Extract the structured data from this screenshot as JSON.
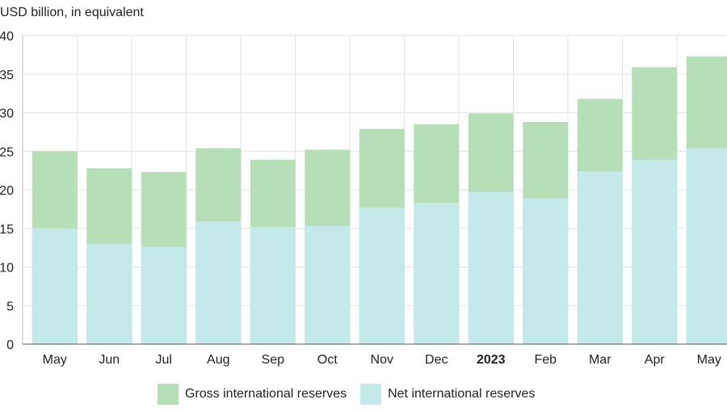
{
  "chart_data": {
    "type": "bar",
    "stacked": false,
    "overlapping": true,
    "unit_label": "USD billion, in equivalent",
    "categories": [
      "May",
      "Jun",
      "Jul",
      "Aug",
      "Sep",
      "Oct",
      "Nov",
      "Dec",
      "2023",
      "Feb",
      "Mar",
      "Apr",
      "May"
    ],
    "bold_categories": [
      "2023"
    ],
    "series": [
      {
        "name": "Gross international reserves",
        "color": "#b7dfb7",
        "values": [
          25.0,
          22.8,
          22.3,
          25.4,
          23.9,
          25.2,
          27.9,
          28.5,
          29.9,
          28.8,
          31.8,
          35.9,
          37.3
        ]
      },
      {
        "name": "Net international reserves",
        "color": "#c3e9e9",
        "values": [
          15.0,
          13.0,
          12.6,
          15.9,
          15.2,
          15.3,
          17.7,
          18.3,
          19.7,
          18.9,
          22.4,
          23.9,
          25.4
        ]
      }
    ],
    "ylim": [
      0,
      40
    ],
    "yticks": [
      0,
      5,
      10,
      15,
      20,
      25,
      30,
      35,
      40
    ],
    "grid": true,
    "legend_position": "bottom"
  }
}
